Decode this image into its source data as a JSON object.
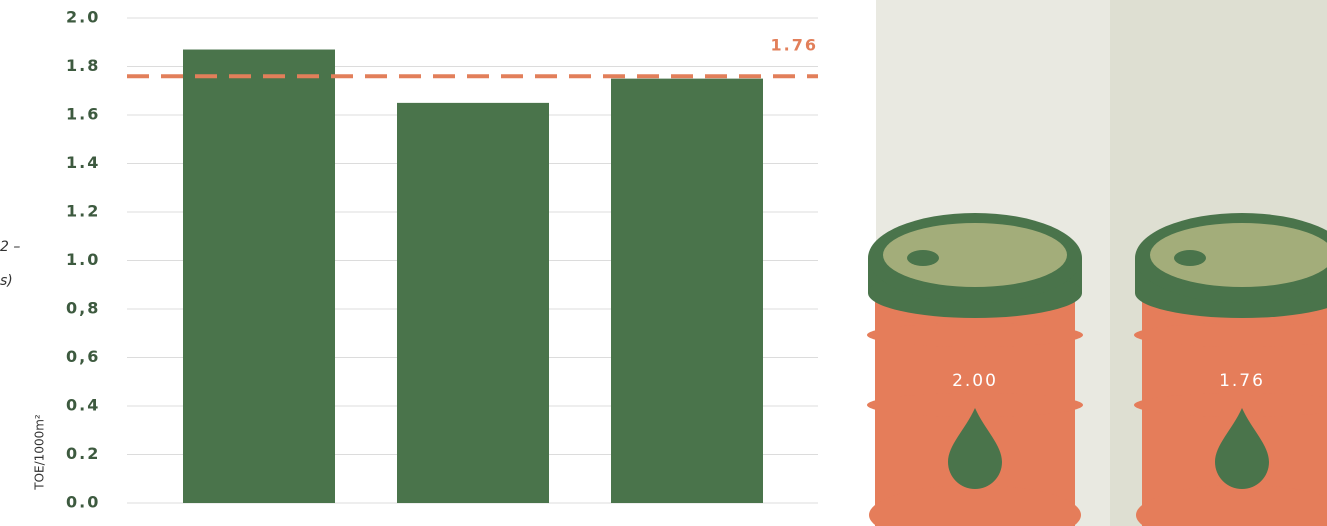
{
  "chart_data": {
    "type": "bar",
    "categories": [
      null,
      null,
      null
    ],
    "values": [
      1.87,
      1.65,
      1.75
    ],
    "color": "#4a744b",
    "ylim": [
      0,
      2
    ],
    "yticks": [
      {
        "value": 0,
        "label": "0.0"
      },
      {
        "value": 0.2,
        "label": "0.2"
      },
      {
        "value": 0.4,
        "label": "0.4"
      },
      {
        "value": 0.6,
        "label": "0,6"
      },
      {
        "value": 0.8,
        "label": "0,8"
      },
      {
        "value": 1,
        "label": "1.0"
      },
      {
        "value": 1.2,
        "label": "1.2"
      },
      {
        "value": 1.4,
        "label": "1.4"
      },
      {
        "value": 1.6,
        "label": "1.6"
      },
      {
        "value": 1.8,
        "label": "1.8"
      },
      {
        "value": 2,
        "label": "2.0"
      }
    ],
    "grid": true,
    "y_label": "TOE/1000m²",
    "annotations": [
      "2 –",
      "s)"
    ],
    "reference": {
      "value": 1.76,
      "color": "#e27f5a"
    }
  },
  "barrels": [
    {
      "label": "2.00"
    },
    {
      "label": "1.76"
    }
  ]
}
